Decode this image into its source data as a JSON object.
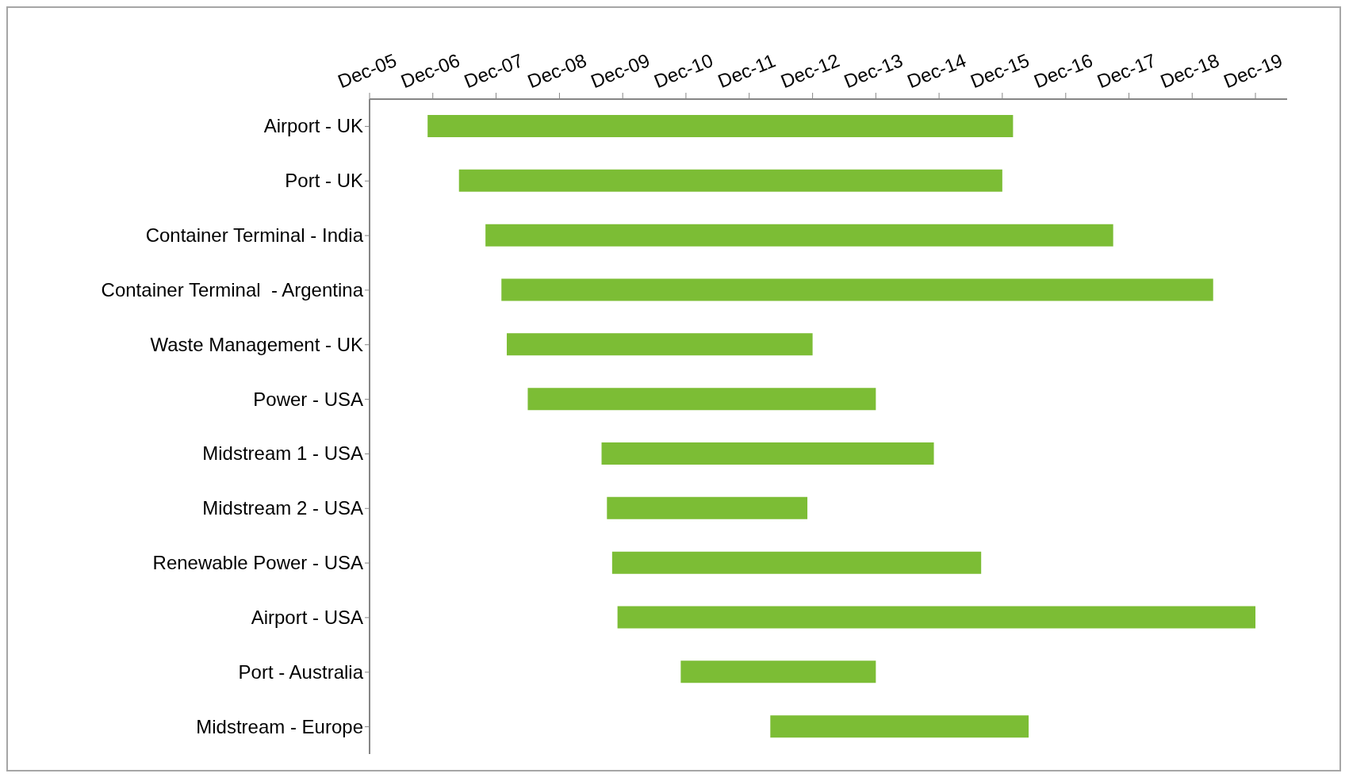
{
  "chart_data": {
    "type": "bar",
    "orientation": "horizontal",
    "categories": [
      "Airport - UK",
      "Port - UK",
      "Container Terminal - India",
      "Container Terminal  - Argentina",
      "Waste Management - UK",
      "Power - USA",
      "Midstream 1 - USA",
      "Midstream 2 - USA",
      "Renewable Power - USA",
      "Airport - USA",
      "Port - Australia",
      "Midstream - Europe"
    ],
    "base": [
      13453,
      13634,
      13787,
      13879,
      13910,
      14031,
      14457,
      14488,
      14518,
      14549,
      14914,
      15431
    ],
    "values": [
      3379,
      3136,
      3623,
      4108,
      1765,
      2009,
      1918,
      1157,
      2130,
      3682,
      1126,
      1491
    ],
    "color": "#7cbd35",
    "xlim": [
      "2005-12-01",
      "2020-06-01"
    ],
    "xticks": [
      {
        "value": "2005-12-01",
        "label": "Dec-05"
      },
      {
        "value": "2006-12-01",
        "label": "Dec-06"
      },
      {
        "value": "2007-12-01",
        "label": "Dec-07"
      },
      {
        "value": "2008-12-01",
        "label": "Dec-08"
      },
      {
        "value": "2009-12-01",
        "label": "Dec-09"
      },
      {
        "value": "2010-12-01",
        "label": "Dec-10"
      },
      {
        "value": "2011-12-01",
        "label": "Dec-11"
      },
      {
        "value": "2012-12-01",
        "label": "Dec-12"
      },
      {
        "value": "2013-12-01",
        "label": "Dec-13"
      },
      {
        "value": "2014-12-01",
        "label": "Dec-14"
      },
      {
        "value": "2015-12-01",
        "label": "Dec-15"
      },
      {
        "value": "2016-12-01",
        "label": "Dec-16"
      },
      {
        "value": "2017-12-01",
        "label": "Dec-17"
      },
      {
        "value": "2018-12-01",
        "label": "Dec-18"
      },
      {
        "value": "2019-12-01",
        "label": "Dec-19"
      }
    ],
    "grid": false
  }
}
